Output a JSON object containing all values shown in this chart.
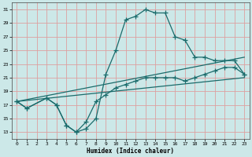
{
  "xlabel": "Humidex (Indice chaleur)",
  "background_color": "#cce8e8",
  "grid_color": "#dda0a0",
  "line_color": "#1a6b6b",
  "xlim": [
    -0.5,
    23.5
  ],
  "ylim": [
    12,
    32
  ],
  "xticks": [
    0,
    1,
    2,
    3,
    4,
    5,
    6,
    7,
    8,
    9,
    10,
    11,
    12,
    13,
    14,
    15,
    16,
    17,
    18,
    19,
    20,
    21,
    22,
    23
  ],
  "yticks": [
    13,
    15,
    17,
    19,
    21,
    23,
    25,
    27,
    29,
    31
  ],
  "curve1_x": [
    0,
    1,
    3,
    4,
    5,
    6,
    7,
    8,
    9,
    10,
    11,
    12,
    13,
    14,
    15,
    16,
    17,
    18,
    19,
    20,
    21,
    22,
    23
  ],
  "curve1_y": [
    17.5,
    16.5,
    18.0,
    17.0,
    14.0,
    13.0,
    13.5,
    15.0,
    21.5,
    25.0,
    29.5,
    30.0,
    31.0,
    30.5,
    30.5,
    27.0,
    26.5,
    24.0,
    24.0,
    23.5,
    23.5,
    23.5,
    21.5
  ],
  "curve2_x": [
    0,
    1,
    3,
    4,
    5,
    6,
    7,
    8,
    9,
    10,
    11,
    12,
    13,
    14,
    15,
    16,
    17,
    18,
    19,
    20,
    21,
    22,
    23
  ],
  "curve2_y": [
    17.5,
    16.5,
    18.0,
    17.0,
    14.0,
    13.0,
    14.5,
    17.5,
    18.5,
    19.5,
    20.0,
    20.5,
    21.0,
    21.0,
    21.0,
    21.0,
    20.5,
    21.0,
    21.5,
    22.0,
    22.5,
    22.5,
    21.5
  ],
  "line1_x": [
    0,
    23
  ],
  "line1_y": [
    17.5,
    24.0
  ],
  "line2_x": [
    0,
    23
  ],
  "line2_y": [
    17.5,
    21.0
  ]
}
